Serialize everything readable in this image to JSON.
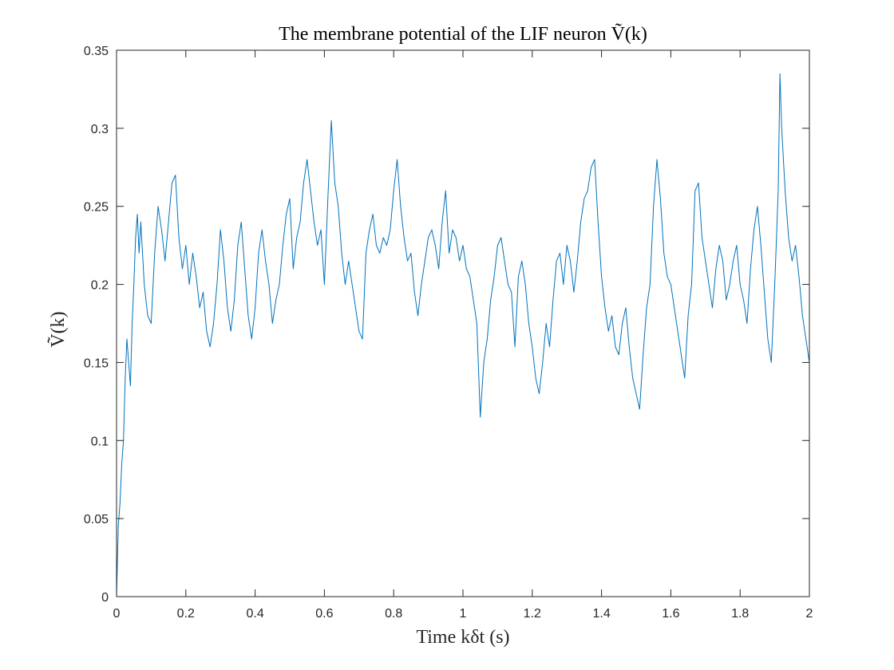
{
  "chart_data": {
    "type": "line",
    "title": "The membrane potential of the LIF neuron Ṽ(k)",
    "xlabel": "Time kδt (s)",
    "ylabel": "Ṽ(k)",
    "xlim": [
      0,
      2
    ],
    "ylim": [
      0,
      0.35
    ],
    "xticks": [
      0,
      0.2,
      0.4,
      0.6,
      0.8,
      1,
      1.2,
      1.4,
      1.6,
      1.8,
      2
    ],
    "xtick_labels": [
      "0",
      "0.2",
      "0.4",
      "0.6",
      "0.8",
      "1",
      "1.2",
      "1.4",
      "1.6",
      "1.8",
      "2"
    ],
    "yticks": [
      0,
      0.05,
      0.1,
      0.15,
      0.2,
      0.25,
      0.3,
      0.35
    ],
    "ytick_labels": [
      "0",
      "0.05",
      "0.1",
      "0.15",
      "0.2",
      "0.25",
      "0.3",
      "0.35"
    ],
    "grid": false,
    "line_color": "#0072BD",
    "series": [
      {
        "x": [
          0,
          0.005,
          0.01,
          0.015,
          0.02,
          0.025,
          0.03,
          0.035,
          0.04,
          0.045,
          0.05,
          0.055,
          0.06,
          0.065,
          0.07,
          0.08,
          0.09,
          0.1,
          0.11,
          0.12,
          0.13,
          0.14,
          0.15,
          0.16,
          0.17,
          0.18,
          0.19,
          0.2,
          0.21,
          0.22,
          0.23,
          0.24,
          0.25,
          0.26,
          0.27,
          0.28,
          0.29,
          0.3,
          0.31,
          0.32,
          0.33,
          0.34,
          0.35,
          0.36,
          0.37,
          0.38,
          0.39,
          0.4,
          0.41,
          0.42,
          0.43,
          0.44,
          0.45,
          0.46,
          0.47,
          0.48,
          0.49,
          0.5,
          0.51,
          0.52,
          0.53,
          0.54,
          0.55,
          0.56,
          0.57,
          0.58,
          0.59,
          0.6,
          0.61,
          0.62,
          0.63,
          0.64,
          0.65,
          0.66,
          0.67,
          0.68,
          0.69,
          0.7,
          0.71,
          0.72,
          0.73,
          0.74,
          0.75,
          0.76,
          0.77,
          0.78,
          0.79,
          0.8,
          0.81,
          0.82,
          0.83,
          0.84,
          0.85,
          0.86,
          0.87,
          0.88,
          0.89,
          0.9,
          0.91,
          0.92,
          0.93,
          0.94,
          0.95,
          0.96,
          0.97,
          0.98,
          0.99,
          1.0,
          1.01,
          1.02,
          1.03,
          1.04,
          1.05,
          1.06,
          1.07,
          1.08,
          1.09,
          1.1,
          1.11,
          1.12,
          1.13,
          1.14,
          1.15,
          1.16,
          1.17,
          1.18,
          1.19,
          1.2,
          1.21,
          1.22,
          1.23,
          1.24,
          1.25,
          1.26,
          1.27,
          1.28,
          1.29,
          1.3,
          1.31,
          1.32,
          1.33,
          1.34,
          1.35,
          1.36,
          1.37,
          1.38,
          1.39,
          1.4,
          1.41,
          1.42,
          1.43,
          1.44,
          1.45,
          1.46,
          1.47,
          1.48,
          1.49,
          1.5,
          1.51,
          1.52,
          1.53,
          1.54,
          1.55,
          1.56,
          1.57,
          1.58,
          1.59,
          1.6,
          1.61,
          1.62,
          1.63,
          1.64,
          1.65,
          1.66,
          1.67,
          1.68,
          1.69,
          1.7,
          1.71,
          1.72,
          1.73,
          1.74,
          1.75,
          1.76,
          1.77,
          1.78,
          1.79,
          1.8,
          1.81,
          1.82,
          1.83,
          1.84,
          1.85,
          1.86,
          1.87,
          1.88,
          1.89,
          1.9,
          1.91,
          1.915,
          1.92,
          1.93,
          1.94,
          1.95,
          1.96,
          1.97,
          1.98,
          1.99,
          2.0
        ],
        "y": [
          0.0,
          0.045,
          0.06,
          0.085,
          0.1,
          0.14,
          0.165,
          0.15,
          0.135,
          0.175,
          0.2,
          0.23,
          0.245,
          0.22,
          0.24,
          0.2,
          0.18,
          0.175,
          0.22,
          0.25,
          0.235,
          0.215,
          0.24,
          0.265,
          0.27,
          0.23,
          0.21,
          0.225,
          0.2,
          0.22,
          0.205,
          0.185,
          0.195,
          0.17,
          0.16,
          0.175,
          0.2,
          0.235,
          0.215,
          0.185,
          0.17,
          0.19,
          0.225,
          0.24,
          0.21,
          0.18,
          0.165,
          0.185,
          0.22,
          0.235,
          0.215,
          0.2,
          0.175,
          0.19,
          0.2,
          0.225,
          0.245,
          0.255,
          0.21,
          0.23,
          0.24,
          0.265,
          0.28,
          0.26,
          0.24,
          0.225,
          0.235,
          0.2,
          0.255,
          0.305,
          0.265,
          0.25,
          0.22,
          0.2,
          0.215,
          0.2,
          0.185,
          0.17,
          0.165,
          0.22,
          0.235,
          0.245,
          0.225,
          0.22,
          0.23,
          0.225,
          0.235,
          0.26,
          0.28,
          0.25,
          0.23,
          0.215,
          0.22,
          0.195,
          0.18,
          0.2,
          0.215,
          0.23,
          0.235,
          0.225,
          0.21,
          0.24,
          0.26,
          0.22,
          0.235,
          0.23,
          0.215,
          0.225,
          0.21,
          0.205,
          0.19,
          0.175,
          0.115,
          0.15,
          0.165,
          0.19,
          0.205,
          0.225,
          0.23,
          0.215,
          0.2,
          0.195,
          0.16,
          0.205,
          0.215,
          0.2,
          0.175,
          0.16,
          0.14,
          0.13,
          0.15,
          0.175,
          0.16,
          0.19,
          0.215,
          0.22,
          0.2,
          0.225,
          0.215,
          0.195,
          0.215,
          0.24,
          0.255,
          0.26,
          0.275,
          0.28,
          0.24,
          0.205,
          0.185,
          0.17,
          0.18,
          0.16,
          0.155,
          0.175,
          0.185,
          0.16,
          0.14,
          0.13,
          0.12,
          0.155,
          0.185,
          0.2,
          0.25,
          0.28,
          0.255,
          0.22,
          0.205,
          0.2,
          0.185,
          0.17,
          0.155,
          0.14,
          0.18,
          0.2,
          0.26,
          0.265,
          0.23,
          0.215,
          0.2,
          0.185,
          0.21,
          0.225,
          0.215,
          0.19,
          0.2,
          0.215,
          0.225,
          0.2,
          0.19,
          0.175,
          0.21,
          0.235,
          0.25,
          0.225,
          0.195,
          0.165,
          0.15,
          0.2,
          0.26,
          0.335,
          0.3,
          0.26,
          0.23,
          0.215,
          0.225,
          0.205,
          0.18,
          0.165,
          0.15
        ]
      }
    ]
  }
}
